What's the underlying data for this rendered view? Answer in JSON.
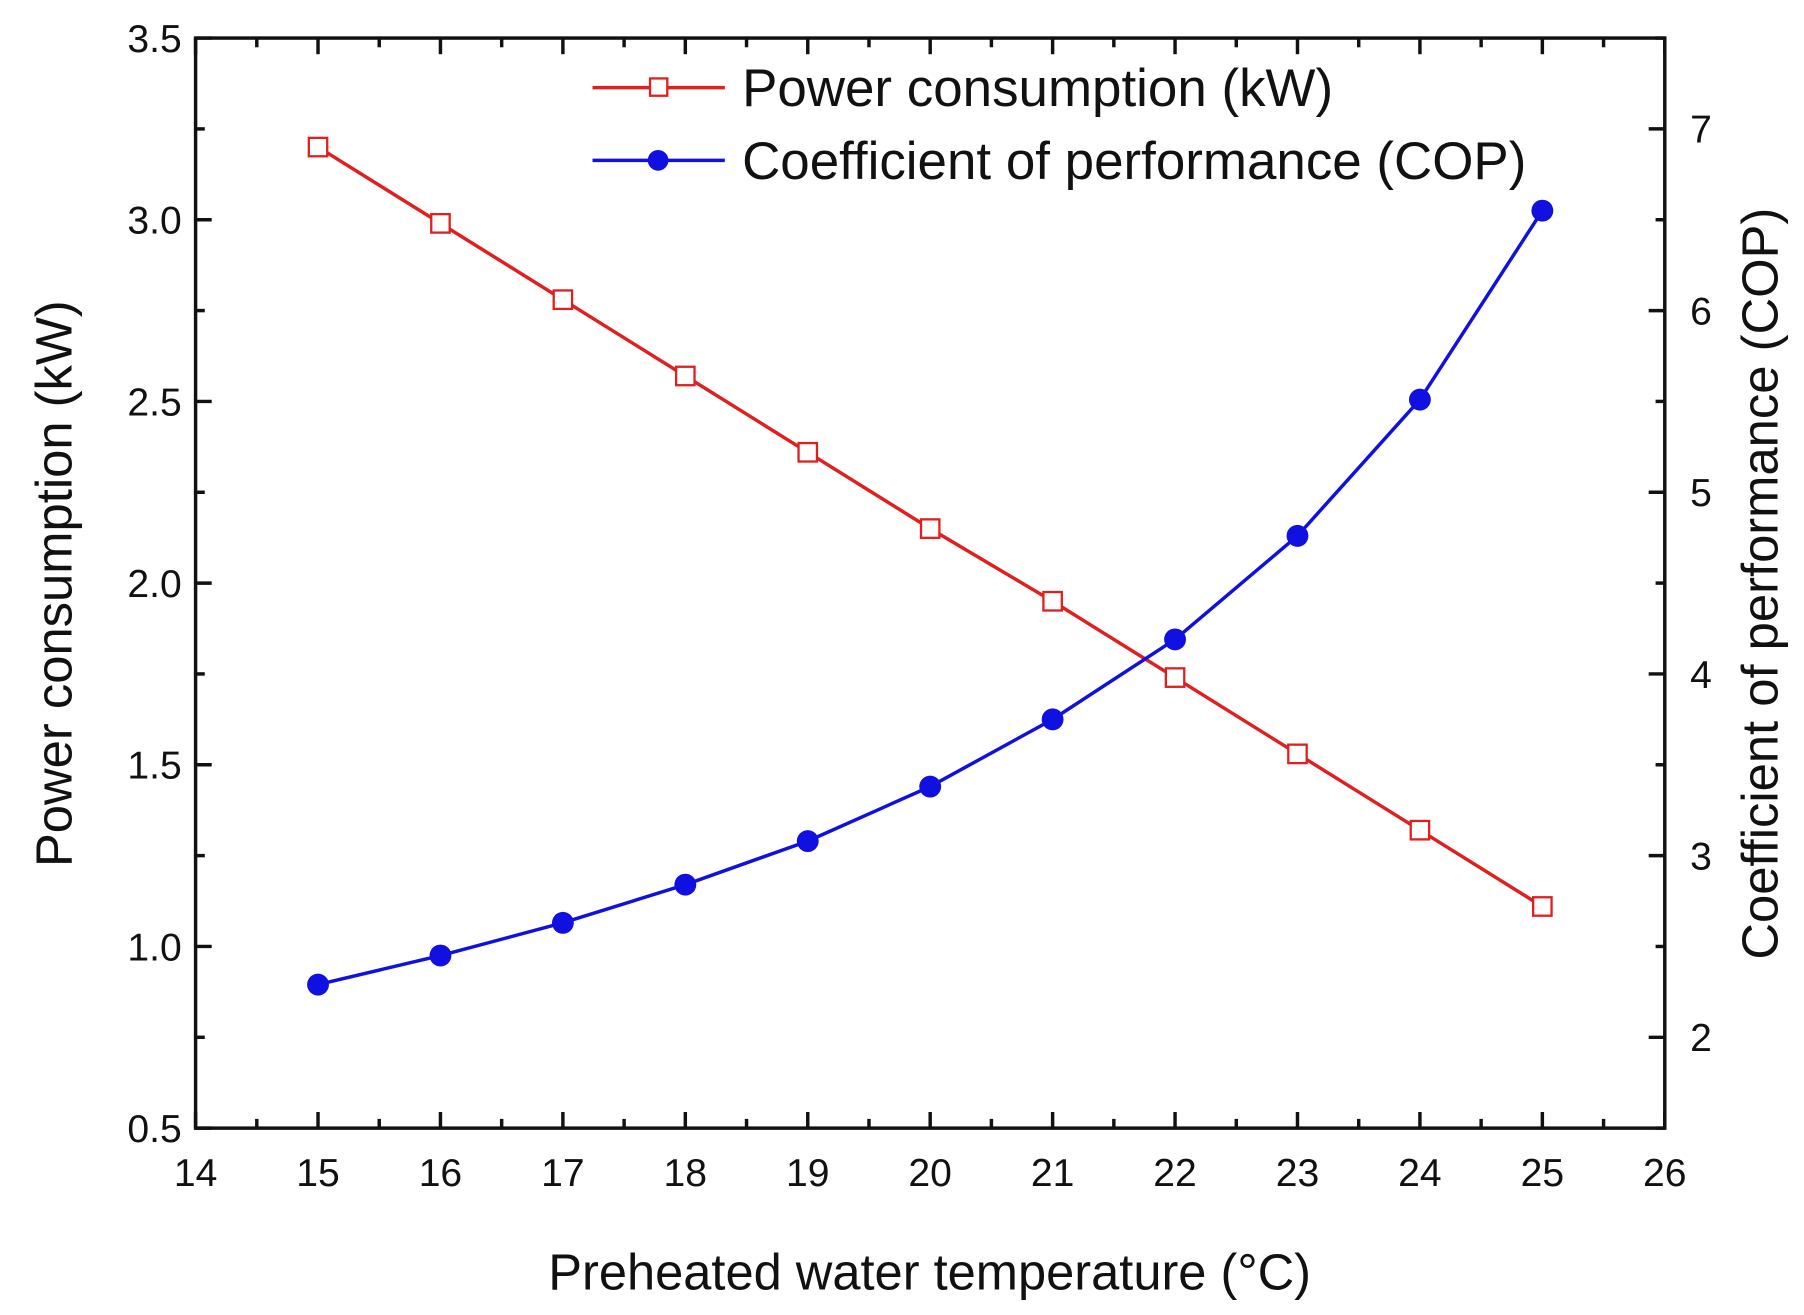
{
  "chart_data": {
    "type": "line",
    "title": "",
    "xlabel": "Preheated water temperature (°C)",
    "xlabel_parts": [
      "Preheated water temperature (",
      "o",
      "C)"
    ],
    "ylabel_left": "Power consumption (kW)",
    "ylabel_right": "Coefficient of performance (COP)",
    "xlim": [
      14,
      26
    ],
    "ylim_left": [
      0.5,
      3.5
    ],
    "ylim_right": [
      1.5,
      7.5
    ],
    "x_ticks": [
      14,
      15,
      16,
      17,
      18,
      19,
      20,
      21,
      22,
      23,
      24,
      25,
      26
    ],
    "y_left_ticks": [
      "0.5",
      "1.0",
      "1.5",
      "2.0",
      "2.5",
      "3.0",
      "3.5"
    ],
    "y_right_ticks": [
      "2",
      "3",
      "4",
      "5",
      "6",
      "7"
    ],
    "legend_position": "top-right",
    "grid": false,
    "x": [
      15,
      16,
      17,
      18,
      19,
      20,
      21,
      22,
      23,
      24,
      25
    ],
    "series": [
      {
        "name": "Power consumption (kW)",
        "axis": "left",
        "color": "#e02020",
        "marker": "open-square",
        "values": [
          3.2,
          2.99,
          2.78,
          2.57,
          2.36,
          2.15,
          1.95,
          1.74,
          1.53,
          1.32,
          1.11
        ]
      },
      {
        "name": "Coefficient of performance (COP)",
        "axis": "right",
        "color": "#1010e0",
        "marker": "filled-circle",
        "values": [
          2.29,
          2.45,
          2.63,
          2.84,
          3.08,
          3.38,
          3.75,
          4.19,
          4.76,
          5.51,
          6.55
        ]
      }
    ]
  }
}
